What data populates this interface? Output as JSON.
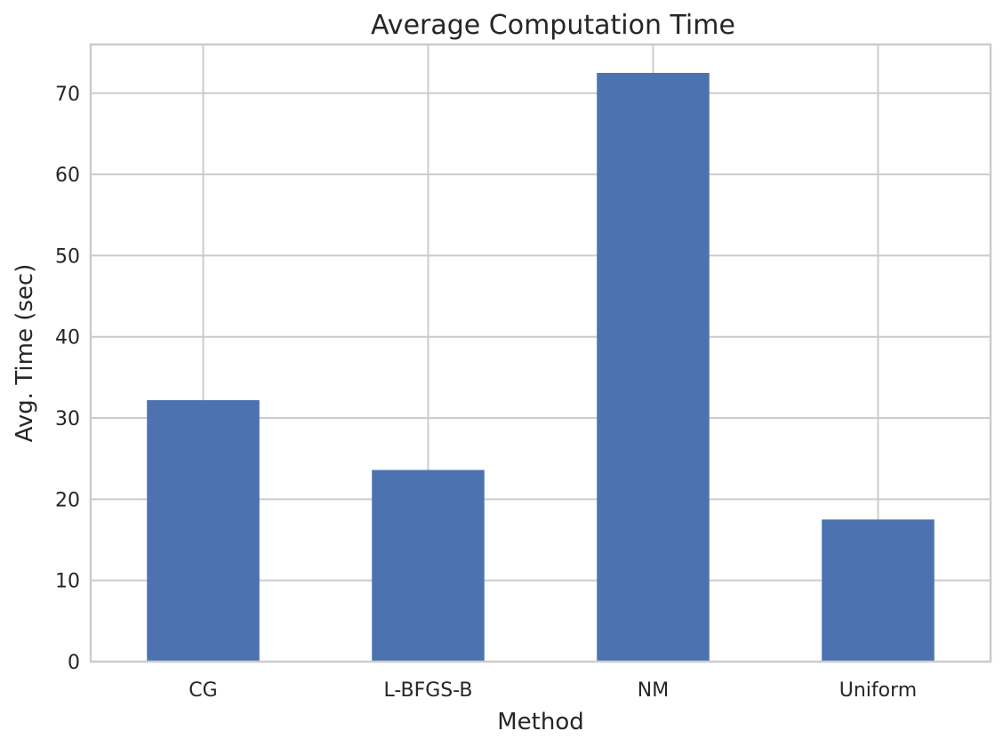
{
  "chart_data": {
    "type": "bar",
    "title": "Average Computation Time",
    "xlabel": "Method",
    "ylabel": "Avg. Time (sec)",
    "categories": [
      "CG",
      "L-BFGS-B",
      "NM",
      "Uniform"
    ],
    "values": [
      32.2,
      23.6,
      72.5,
      17.5
    ],
    "ylim": [
      0,
      76
    ],
    "yticks": [
      0,
      10,
      20,
      30,
      40,
      50,
      60,
      70
    ],
    "grid": true,
    "bar_color": "#4c72b0"
  }
}
